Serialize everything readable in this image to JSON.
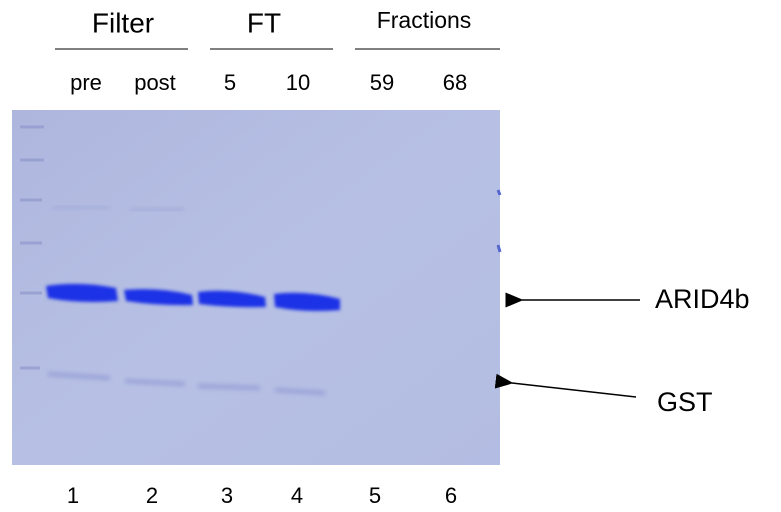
{
  "groups": [
    {
      "label": "Filter",
      "lanes": [
        "pre",
        "post"
      ]
    },
    {
      "label": "FT",
      "lanes": [
        "5",
        "10"
      ]
    },
    {
      "label": "Fractions",
      "lanes": [
        "59",
        "68"
      ]
    }
  ],
  "lane_numbers": [
    "1",
    "2",
    "3",
    "4",
    "5",
    "6"
  ],
  "bands": [
    "ARID4b",
    "GST"
  ]
}
